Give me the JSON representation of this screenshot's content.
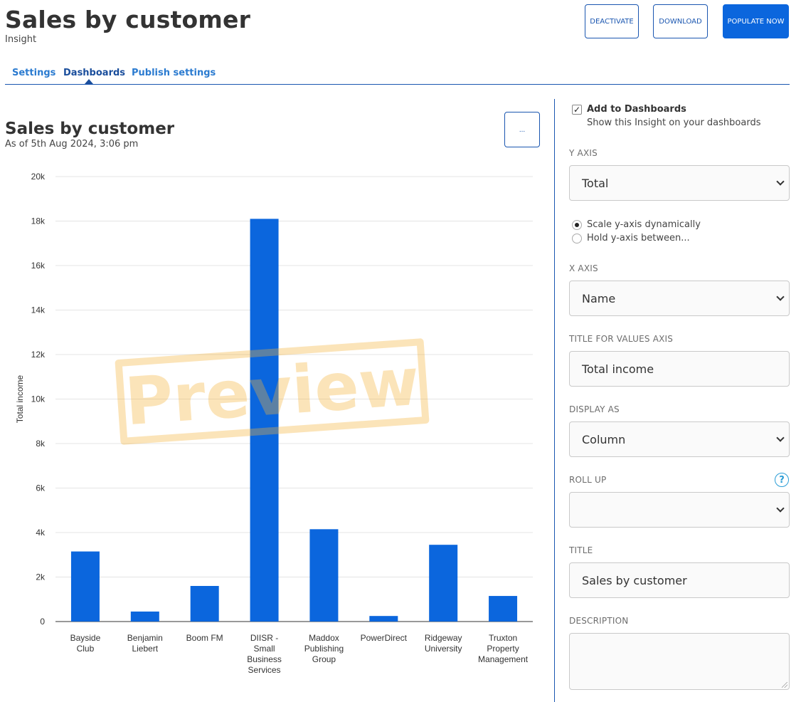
{
  "header": {
    "title": "Sales by customer",
    "subtitle": "Insight",
    "buttons": {
      "deactivate": "DEACTIVATE",
      "download": "DOWNLOAD",
      "populate": "POPULATE NOW"
    }
  },
  "tabs": [
    {
      "label": "Settings",
      "active": false
    },
    {
      "label": "Dashboards",
      "active": true
    },
    {
      "label": "Publish settings",
      "active": false
    }
  ],
  "chart_panel": {
    "title": "Sales by customer",
    "subtitle": "As of 5th Aug 2024, 3:06 pm",
    "more_button": "...",
    "watermark": "Preview"
  },
  "chart_data": {
    "type": "bar",
    "categories": [
      [
        "Bayside",
        "Club"
      ],
      [
        "Benjamin",
        "Liebert"
      ],
      [
        "Boom FM"
      ],
      [
        "DIISR -",
        "Small",
        "Business",
        "Services"
      ],
      [
        "Maddox",
        "Publishing",
        "Group"
      ],
      [
        "PowerDirect"
      ],
      [
        "Ridgeway",
        "University"
      ],
      [
        "Truxton",
        "Property",
        "Management"
      ]
    ],
    "values": [
      3150,
      450,
      1600,
      18100,
      4150,
      250,
      3450,
      1150
    ],
    "ylabel": "Total income",
    "xlabel": "",
    "ylim": [
      0,
      20000
    ],
    "yticks": [
      "0",
      "2k",
      "4k",
      "6k",
      "8k",
      "10k",
      "12k",
      "14k",
      "16k",
      "18k",
      "20k"
    ],
    "grid": true,
    "bar_color": "#0b66dd"
  },
  "settings": {
    "add_to_dashboards": {
      "label": "Add to Dashboards",
      "help": "Show this Insight on your dashboards",
      "checked": true,
      "mark": "✓"
    },
    "y_axis": {
      "label": "Y AXIS",
      "value": "Total"
    },
    "scale": {
      "dynamic": "Scale y-axis dynamically",
      "hold": "Hold y-axis between...",
      "selected": "dynamic"
    },
    "x_axis": {
      "label": "X AXIS",
      "value": "Name"
    },
    "values_axis_title": {
      "label": "TITLE FOR VALUES AXIS",
      "value": "Total income"
    },
    "display_as": {
      "label": "DISPLAY AS",
      "value": "Column"
    },
    "roll_up": {
      "label": "ROLL UP",
      "value": "",
      "help": "?"
    },
    "title": {
      "label": "TITLE",
      "value": "Sales by customer"
    },
    "description": {
      "label": "DESCRIPTION",
      "value": ""
    }
  },
  "colors": {
    "accent": "#1a56b0",
    "primary_button": "#0b66dd",
    "tab_link": "#2b7bd0",
    "help_icon": "#2a9dd6"
  }
}
